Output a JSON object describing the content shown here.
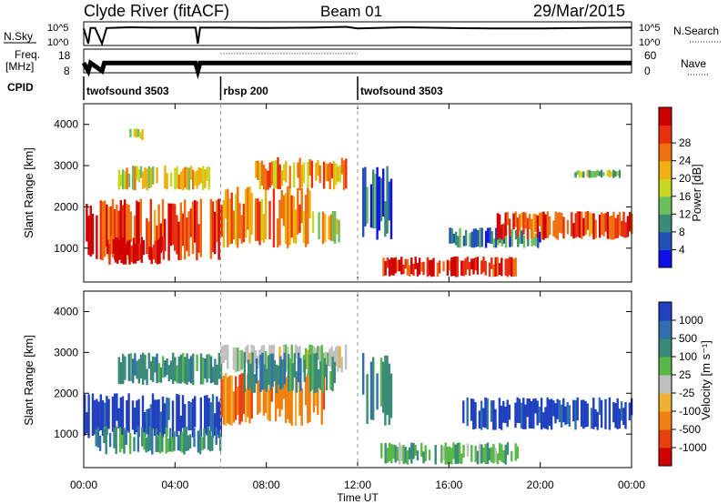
{
  "header": {
    "station": "Clyde River (fitACF)",
    "beam": "Beam 01",
    "date": "29/Mar/2015"
  },
  "nsky_panel": {
    "left_label": "N.Sky",
    "left_ticks": [
      "10^5",
      "10^0"
    ],
    "right_ticks": [
      "10^5",
      "10^0"
    ],
    "right_label": "N.Search",
    "ylim": [
      0,
      5
    ]
  },
  "freq_panel": {
    "left_label_top": "Freq.",
    "left_label_unit": "[MHz]",
    "left_ticks": [
      "18",
      "8"
    ],
    "right_ticks": [
      "60",
      "0"
    ],
    "right_label": "Nave",
    "ylim": [
      8,
      18
    ]
  },
  "cpid_panel": {
    "label": "CPID",
    "segments": [
      {
        "name": "twofsound 3503",
        "start": 0,
        "end": 6
      },
      {
        "name": "rbsp 200",
        "start": 6,
        "end": 12
      },
      {
        "name": "twofsound 3503",
        "start": 12,
        "end": 24
      }
    ]
  },
  "x_axis": {
    "label": "Time UT",
    "ticks": [
      "00:00",
      "04:00",
      "08:00",
      "12:00",
      "16:00",
      "20:00",
      "00:00"
    ],
    "range_hours": [
      0,
      24
    ]
  },
  "power_panel": {
    "ylabel": "Slant Range [km]",
    "yticks": [
      "1000",
      "2000",
      "3000",
      "4000"
    ],
    "colorbar_label": "Power [dB]",
    "colorbar_ticks": [
      "4",
      "8",
      "12",
      "16",
      "20",
      "24",
      "28"
    ]
  },
  "velocity_panel": {
    "ylabel": "Slant Range [km]",
    "yticks": [
      "1000",
      "2000",
      "3000",
      "4000"
    ],
    "colorbar_label": "Velocity [m s⁻¹]",
    "colorbar_ticks": [
      "1000",
      "500",
      "100",
      "25",
      "-25",
      "-100",
      "-500",
      "-1000"
    ]
  },
  "colors": {
    "power_scale": [
      "#1010e8",
      "#2050b8",
      "#3a8a78",
      "#6cbf5a",
      "#c8d820",
      "#f0b010",
      "#f07010",
      "#e83010",
      "#d00000"
    ],
    "velocity_scale": [
      "#2040c0",
      "#2f6fb0",
      "#3a8a78",
      "#58b848",
      "#c0c0c0",
      "#f0b030",
      "#f08010",
      "#e84010",
      "#d00000"
    ]
  },
  "chart_data": [
    {
      "type": "heatmap",
      "name": "power",
      "x_units": "hours UT",
      "y_units": "km",
      "xlim": [
        0,
        24
      ],
      "ylim": [
        180,
        4500
      ],
      "blobs": [
        {
          "t0": 0.0,
          "t1": 6.0,
          "r0": 700,
          "r1": 2200,
          "level": 0.82
        },
        {
          "t0": 1.0,
          "t1": 3.5,
          "r0": 600,
          "r1": 1300,
          "level": 0.95
        },
        {
          "t0": 1.5,
          "t1": 5.5,
          "r0": 2400,
          "r1": 3000,
          "level": 0.55
        },
        {
          "t0": 2.0,
          "t1": 2.6,
          "r0": 3600,
          "r1": 3900,
          "level": 0.5
        },
        {
          "t0": 6.0,
          "t1": 10.0,
          "r0": 1000,
          "r1": 2500,
          "level": 0.7
        },
        {
          "t0": 7.5,
          "t1": 11.5,
          "r0": 2400,
          "r1": 3200,
          "level": 0.65
        },
        {
          "t0": 10.0,
          "t1": 11.2,
          "r0": 1100,
          "r1": 1900,
          "level": 0.6
        },
        {
          "t0": 12.2,
          "t1": 13.5,
          "r0": 1200,
          "r1": 3000,
          "level": 0.2
        },
        {
          "t0": 13.0,
          "t1": 19.0,
          "r0": 300,
          "r1": 800,
          "level": 0.85
        },
        {
          "t0": 16.0,
          "t1": 20.0,
          "r0": 1000,
          "r1": 1500,
          "level": 0.25
        },
        {
          "t0": 18.0,
          "t1": 24.0,
          "r0": 1200,
          "r1": 1900,
          "level": 0.8
        },
        {
          "t0": 21.5,
          "t1": 23.5,
          "r0": 2700,
          "r1": 2900,
          "level": 0.4
        }
      ]
    },
    {
      "type": "heatmap",
      "name": "velocity",
      "x_units": "hours UT",
      "y_units": "km",
      "xlim": [
        0,
        24
      ],
      "ylim": [
        180,
        4500
      ],
      "blobs": [
        {
          "t0": 0.0,
          "t1": 6.0,
          "r0": 900,
          "r1": 2000,
          "level": 1000
        },
        {
          "t0": 0.5,
          "t1": 6.0,
          "r0": 500,
          "r1": 1200,
          "level": 100
        },
        {
          "t0": 1.5,
          "t1": 6.0,
          "r0": 2200,
          "r1": 3000,
          "level": 100
        },
        {
          "t0": 6.0,
          "t1": 10.5,
          "r0": 1200,
          "r1": 2500,
          "level": -300
        },
        {
          "t0": 6.0,
          "t1": 11.5,
          "r0": 2500,
          "r1": 3200,
          "level": 25
        },
        {
          "t0": 7.0,
          "t1": 11.0,
          "r0": 2000,
          "r1": 3000,
          "level": 100
        },
        {
          "t0": 12.2,
          "t1": 13.5,
          "r0": 1200,
          "r1": 3000,
          "level": 100
        },
        {
          "t0": 13.0,
          "t1": 19.0,
          "r0": 250,
          "r1": 800,
          "level": 80
        },
        {
          "t0": 16.5,
          "t1": 24.0,
          "r0": 1100,
          "r1": 1900,
          "level": 900
        }
      ]
    },
    {
      "type": "line",
      "name": "nsky",
      "x_units": "hours UT",
      "y_units": "log10",
      "x": [
        0,
        0.2,
        0.3,
        0.5,
        0.8,
        1.0,
        2.0,
        3.0,
        4.0,
        4.9,
        5.0,
        5.1,
        6,
        8,
        10,
        11.5,
        12,
        14,
        16,
        18,
        20,
        22,
        24
      ],
      "y": [
        3.8,
        0.0,
        3.9,
        3.9,
        0.0,
        3.9,
        4.1,
        4.0,
        4.0,
        4.0,
        0.0,
        4.0,
        4.0,
        3.9,
        4.0,
        4.2,
        3.8,
        4.1,
        3.9,
        3.8,
        3.8,
        3.9,
        4.0
      ]
    },
    {
      "type": "line",
      "name": "freq",
      "x_units": "hours UT",
      "y_units": "MHz",
      "x": [
        0,
        0.2,
        0.3,
        0.8,
        0.9,
        4.9,
        5.0,
        5.1,
        6.0,
        12.0,
        24.0
      ],
      "y": [
        12,
        8,
        12,
        8,
        12,
        12,
        8,
        12,
        12,
        12,
        12
      ],
      "nave_dotted": {
        "x": [
          6.0,
          12.0
        ],
        "y": [
          52,
          52
        ]
      }
    }
  ]
}
